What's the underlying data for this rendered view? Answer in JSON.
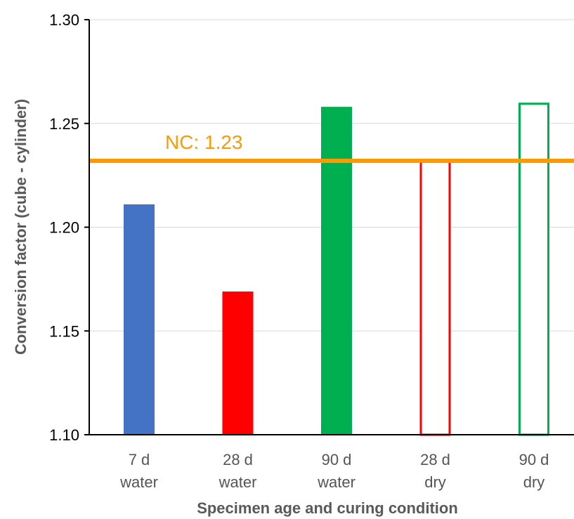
{
  "chart_data": {
    "type": "bar",
    "title": "",
    "xlabel": "Specimen age and curing condition",
    "ylabel": "Conversion factor (cube - cylinder)",
    "ylim": [
      1.1,
      1.3
    ],
    "yticks": [
      "1.10",
      "1.15",
      "1.20",
      "1.25",
      "1.30"
    ],
    "ytick_values": [
      1.1,
      1.15,
      1.2,
      1.25,
      1.3
    ],
    "grid": true,
    "categories": [
      {
        "line1": "7 d",
        "line2": "water"
      },
      {
        "line1": "28 d",
        "line2": "water"
      },
      {
        "line1": "90 d",
        "line2": "water"
      },
      {
        "line1": "28 d",
        "line2": "dry"
      },
      {
        "line1": "90 d",
        "line2": "dry"
      }
    ],
    "values": [
      1.211,
      1.169,
      1.258,
      1.233,
      1.26
    ],
    "bar_colors": [
      "#4472C4",
      "#FF0000",
      "#00B050",
      "#FF0000",
      "#00B050"
    ],
    "bar_filled": [
      true,
      true,
      true,
      false,
      false
    ],
    "reference_line": {
      "label": "NC: 1.23",
      "value": 1.232,
      "color": "#FF9900"
    }
  }
}
